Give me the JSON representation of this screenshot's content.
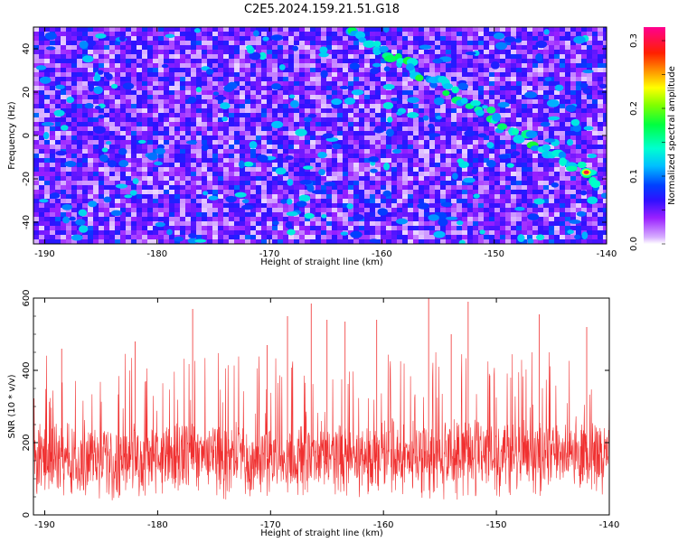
{
  "title": "C2E5.2024.159.21.51.G18",
  "colors": {
    "snr_trace": "#f03030",
    "background": "#ffffff",
    "colormap": [
      "#ffffff",
      "#9a20ff",
      "#4010ff",
      "#0000ff",
      "#00a0ff",
      "#00ffff",
      "#00ff60",
      "#40ff00",
      "#ffff00",
      "#ff9000",
      "#ff2000",
      "#ff0090"
    ]
  },
  "chart_data": [
    {
      "type": "heatmap",
      "xlabel": "Height of straight line (km)",
      "ylabel": "Frequency (Hz)",
      "xlim": [
        -191,
        -140
      ],
      "ylim": [
        -50,
        50
      ],
      "xticks": [
        -190,
        -180,
        -170,
        -160,
        -150,
        -140
      ],
      "yticks": [
        -40,
        -20,
        0,
        20,
        40
      ],
      "colorbar": {
        "label": "Normalized spectral amplitude",
        "range": [
          0,
          0.32
        ],
        "ticks": [
          "0.0",
          "0.1",
          "0.2",
          "0.3"
        ]
      },
      "features": {
        "streak": {
          "start": [
            -163,
            49
          ],
          "end": [
            -141,
            -20
          ],
          "note": "diagonal band of elevated amplitude"
        },
        "peak": {
          "x": -141.8,
          "y": -17,
          "value": 0.3
        }
      },
      "grid": false
    },
    {
      "type": "line",
      "xlabel": "Height of straight line (km)",
      "ylabel": "SNR (10 * v/v)",
      "xlim": [
        -191,
        -140
      ],
      "ylim": [
        0,
        600
      ],
      "xticks": [
        -190,
        -180,
        -170,
        -160,
        -150,
        -140
      ],
      "yticks": [
        0,
        200,
        400,
        600
      ],
      "baseline": 160,
      "noise_range": [
        40,
        450
      ],
      "spikes": [
        {
          "x": -166.4,
          "y": 585
        },
        {
          "x": -165.0,
          "y": 540
        },
        {
          "x": -168.5,
          "y": 550
        },
        {
          "x": -176.9,
          "y": 570
        },
        {
          "x": -156.0,
          "y": 600
        },
        {
          "x": -152.5,
          "y": 590
        },
        {
          "x": -146.2,
          "y": 555
        },
        {
          "x": -160.6,
          "y": 540
        },
        {
          "x": -163.4,
          "y": 535
        },
        {
          "x": -142.0,
          "y": 520
        },
        {
          "x": -188.5,
          "y": 460
        },
        {
          "x": -182.0,
          "y": 480
        },
        {
          "x": -170.3,
          "y": 470
        },
        {
          "x": -154.0,
          "y": 500
        }
      ],
      "grid": false
    }
  ]
}
